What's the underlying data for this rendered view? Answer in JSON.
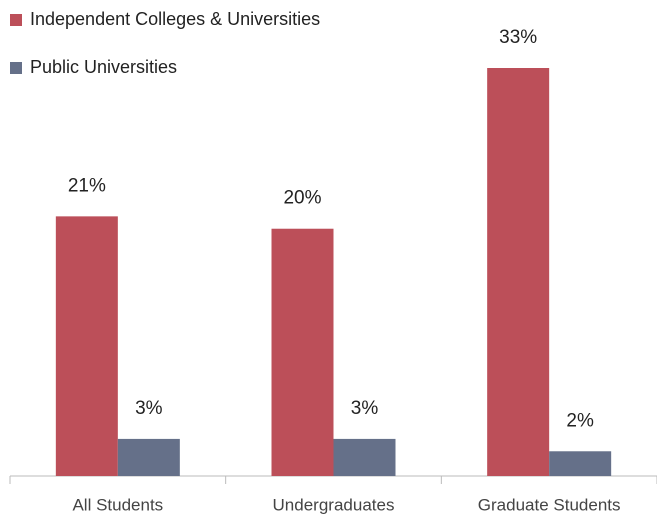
{
  "chart_data": {
    "type": "bar",
    "categories": [
      "All Students",
      "Undergraduates",
      "Graduate Students"
    ],
    "series": [
      {
        "name": "Independent Colleges & Universities",
        "color": "#bc4f59",
        "values": [
          21,
          20,
          33
        ],
        "value_labels": [
          "21%",
          "20%",
          "33%"
        ]
      },
      {
        "name": "Public Universities",
        "color": "#657089",
        "values": [
          3,
          3,
          2
        ],
        "value_labels": [
          "3%",
          "3%",
          "2%"
        ]
      }
    ],
    "legend": "top-left"
  }
}
